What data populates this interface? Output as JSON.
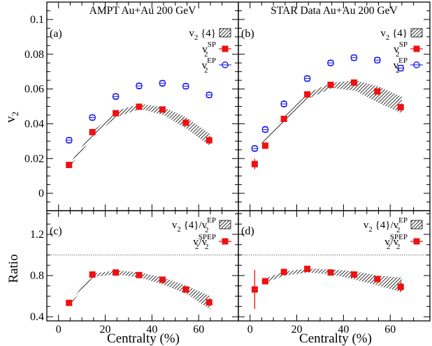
{
  "figure": {
    "xlabel": "Centralty (%)",
    "ylabel_top": "v",
    "ylabel_top_sub": "2",
    "ylabel_bottom": "Ratio",
    "reference_line": 1.0
  },
  "chart_data": [
    {
      "type": "scatter",
      "panel": "(a)",
      "title": "AMPT Au+Au 200 GeV",
      "xlim": [
        -5,
        77
      ],
      "ylim": [
        -0.01,
        0.11
      ],
      "xticks": [
        0,
        20,
        40,
        60
      ],
      "yticks": [
        0,
        0.02,
        0.04,
        0.06,
        0.08,
        0.1
      ],
      "legend": [
        {
          "name": "v",
          "sub": "2",
          "sup": "",
          "tail": " {4}",
          "style": "band"
        },
        {
          "name": "v",
          "sub": "2",
          "sup": "SP",
          "tail": "",
          "style": "square"
        },
        {
          "name": "v",
          "sub": "2",
          "sup": "EP",
          "tail": "",
          "style": "circle"
        }
      ],
      "band": {
        "x": [
          5,
          15,
          25,
          35,
          45,
          55,
          65
        ],
        "lo": [
          0.0155,
          0.033,
          0.044,
          0.0485,
          0.045,
          0.037,
          0.027
        ],
        "hi": [
          0.0175,
          0.036,
          0.0475,
          0.0515,
          0.0495,
          0.0435,
          0.034
        ]
      },
      "series": [
        {
          "style": "square",
          "x": [
            4.5,
            14.5,
            24.5,
            34.5,
            44.5,
            54.5,
            64.5
          ],
          "y": [
            0.0163,
            0.0352,
            0.0461,
            0.0498,
            0.0482,
            0.0406,
            0.0305
          ],
          "err": [
            0.0007,
            0.0007,
            0.0007,
            0.0007,
            0.0007,
            0.0007,
            0.0007
          ]
        },
        {
          "style": "circle",
          "x": [
            4.5,
            14.5,
            24.5,
            34.5,
            44.5,
            54.5,
            64.5
          ],
          "y": [
            0.0305,
            0.0436,
            0.0557,
            0.0618,
            0.0633,
            0.0616,
            0.0566
          ],
          "err": [
            0.0003,
            0.0003,
            0.0003,
            0.0003,
            0.0003,
            0.0003,
            0.0003
          ]
        }
      ]
    },
    {
      "type": "scatter",
      "panel": "(b)",
      "title": "STAR Data Au+Au 200 GeV",
      "xlim": [
        -5,
        77
      ],
      "ylim": [
        -0.01,
        0.11
      ],
      "xticks": [
        0,
        20,
        40,
        60
      ],
      "yticks": [
        0,
        0.02,
        0.04,
        0.06,
        0.08,
        0.1
      ],
      "legend": [
        {
          "name": "v",
          "sub": "2",
          "sup": "",
          "tail": " {4}",
          "style": "band"
        },
        {
          "name": "v",
          "sub": "2",
          "sup": "SP",
          "tail": "",
          "style": "square"
        },
        {
          "name": "v",
          "sub": "2",
          "sup": "EP",
          "tail": "",
          "style": "circle"
        }
      ],
      "band": {
        "x": [
          5,
          15,
          25,
          35,
          45,
          55,
          65
        ],
        "lo": [
          0.027,
          0.0415,
          0.0545,
          0.0605,
          0.059,
          0.052,
          0.046
        ],
        "hi": [
          0.029,
          0.0445,
          0.058,
          0.0635,
          0.065,
          0.0615,
          0.0555
        ]
      },
      "series": [
        {
          "style": "square",
          "x": [
            2,
            6.5,
            14.5,
            24.5,
            34.5,
            44.5,
            54.5,
            64.5
          ],
          "y": [
            0.0168,
            0.0274,
            0.0428,
            0.0569,
            0.0624,
            0.0637,
            0.0586,
            0.0495
          ],
          "err": [
            0.003,
            0.0012,
            0.0008,
            0.0008,
            0.0008,
            0.0008,
            0.0008,
            0.0008
          ]
        },
        {
          "style": "circle",
          "x": [
            2,
            6.5,
            14.5,
            24.5,
            34.5,
            44.5,
            54.5,
            64.5
          ],
          "y": [
            0.0258,
            0.0367,
            0.0514,
            0.066,
            0.075,
            0.078,
            0.0766,
            0.072
          ],
          "err": [
            0.0008,
            0.0008,
            0.0009,
            0.0012,
            0.0014,
            0.0015,
            0.0015,
            0.0016
          ]
        }
      ]
    },
    {
      "type": "scatter",
      "panel": "(c)",
      "xlim": [
        -5,
        77
      ],
      "ylim": [
        0.36,
        1.43
      ],
      "xticks": [
        0,
        20,
        40,
        60
      ],
      "yticks": [
        0.4,
        0.8,
        1.2
      ],
      "legend": [
        {
          "name": "v",
          "sub": "2",
          "sup": "",
          "tail": " {4}/v",
          "tail_sub": "2",
          "tail_sup": "EP",
          "style": "band"
        },
        {
          "name": "v",
          "sub": "2",
          "sup": "SP",
          "tail": "/v",
          "tail_sub": "2",
          "tail_sup": "EP",
          "style": "square"
        }
      ],
      "band": {
        "x": [
          5,
          15,
          25,
          35,
          45,
          55,
          65
        ],
        "lo": [
          0.52,
          0.79,
          0.81,
          0.78,
          0.71,
          0.62,
          0.47
        ],
        "hi": [
          0.55,
          0.82,
          0.85,
          0.83,
          0.78,
          0.7,
          0.6
        ]
      },
      "series": [
        {
          "style": "square",
          "x": [
            4.5,
            14.5,
            24.5,
            34.5,
            44.5,
            54.5,
            64.5
          ],
          "y": [
            0.535,
            0.81,
            0.83,
            0.805,
            0.76,
            0.665,
            0.54
          ],
          "err": [
            0.015,
            0.015,
            0.015,
            0.015,
            0.015,
            0.015,
            0.015
          ]
        }
      ]
    },
    {
      "type": "scatter",
      "panel": "(d)",
      "xlim": [
        -5,
        77
      ],
      "ylim": [
        0.36,
        1.43
      ],
      "xticks": [
        0,
        20,
        40,
        60
      ],
      "yticks": [
        0.4,
        0.8,
        1.2
      ],
      "legend": [
        {
          "name": "v",
          "sub": "2",
          "sup": "",
          "tail": " {4}/v",
          "tail_sub": "2",
          "tail_sup": "EP",
          "style": "band"
        },
        {
          "name": "v",
          "sub": "2",
          "sup": "SP",
          "tail": "/v",
          "tail_sub": "2",
          "tail_sup": "EP",
          "style": "square"
        }
      ],
      "band": {
        "x": [
          5,
          15,
          25,
          35,
          45,
          55,
          65
        ],
        "lo": [
          0.72,
          0.8,
          0.83,
          0.81,
          0.76,
          0.7,
          0.64
        ],
        "hi": [
          0.76,
          0.84,
          0.87,
          0.86,
          0.84,
          0.8,
          0.78
        ]
      },
      "series": [
        {
          "style": "square",
          "x": [
            2,
            6.5,
            14.5,
            24.5,
            34.5,
            44.5,
            54.5,
            64.5
          ],
          "y": [
            0.665,
            0.745,
            0.835,
            0.865,
            0.83,
            0.81,
            0.765,
            0.69
          ],
          "err": [
            0.19,
            0.03,
            0.025,
            0.025,
            0.025,
            0.025,
            0.03,
            0.05
          ]
        }
      ]
    }
  ]
}
